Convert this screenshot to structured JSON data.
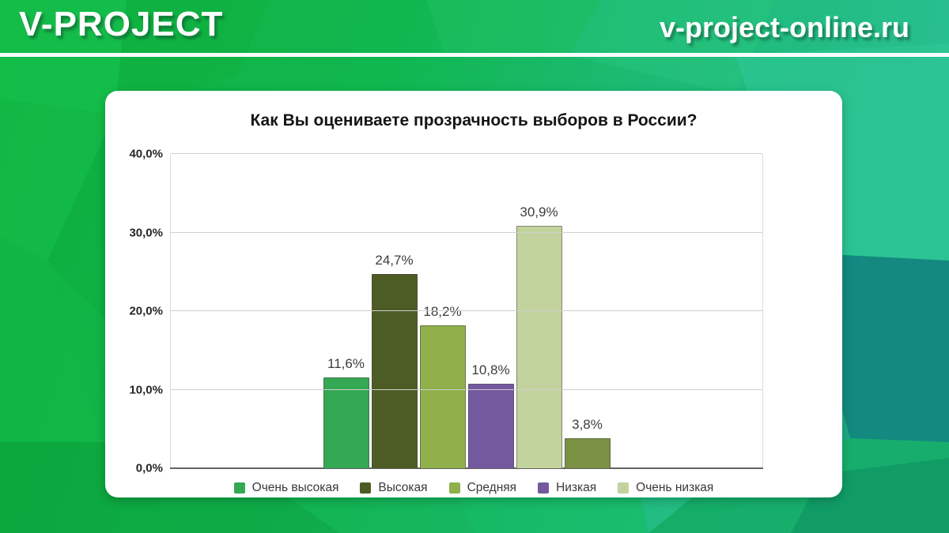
{
  "header": {
    "logo": "V-PROJECT",
    "site": "v-project-online.ru"
  },
  "colors": {
    "background_green": "#12b450",
    "background_teal": "#2abf92",
    "background_dark_teal": "#11837e",
    "card": "#ffffff",
    "axis": "#636363",
    "gridline": "#cfcfcf"
  },
  "chart_data": {
    "type": "bar",
    "title": "Как Вы оцениваете прозрачность выборов в России?",
    "bars": [
      {
        "name": "Очень высокая",
        "value": 11.6,
        "label": "11,6%",
        "color": "#34a853"
      },
      {
        "name": "Высокая",
        "value": 24.7,
        "label": "24,7%",
        "color": "#4d5c24"
      },
      {
        "name": "Средняя",
        "value": 18.2,
        "label": "18,2%",
        "color": "#8fb04a"
      },
      {
        "name": "Низкая",
        "value": 10.8,
        "label": "10,8%",
        "color": "#74599f"
      },
      {
        "name": "Очень низкая",
        "value": 30.9,
        "label": "30,9%",
        "color": "#c3d39d"
      },
      {
        "name": "",
        "value": 3.8,
        "label": "3,8%",
        "color": "#7a9143"
      }
    ],
    "legend": [
      {
        "label": "Очень высокая",
        "color": "#34a853"
      },
      {
        "label": "Высокая",
        "color": "#4d5c24"
      },
      {
        "label": "Средняя",
        "color": "#8fb04a"
      },
      {
        "label": "Низкая",
        "color": "#74599f"
      },
      {
        "label": "Очень низкая",
        "color": "#c3d39d"
      }
    ],
    "legend_position": "bottom",
    "grid": true,
    "ylim": [
      0,
      40
    ],
    "y_ticks": [
      {
        "label": "0,0%",
        "value": 0
      },
      {
        "label": "10,0%",
        "value": 10
      },
      {
        "label": "20,0%",
        "value": 20
      },
      {
        "label": "30,0%",
        "value": 30
      },
      {
        "label": "40,0%",
        "value": 40
      }
    ],
    "xlabel": "",
    "ylabel": ""
  }
}
